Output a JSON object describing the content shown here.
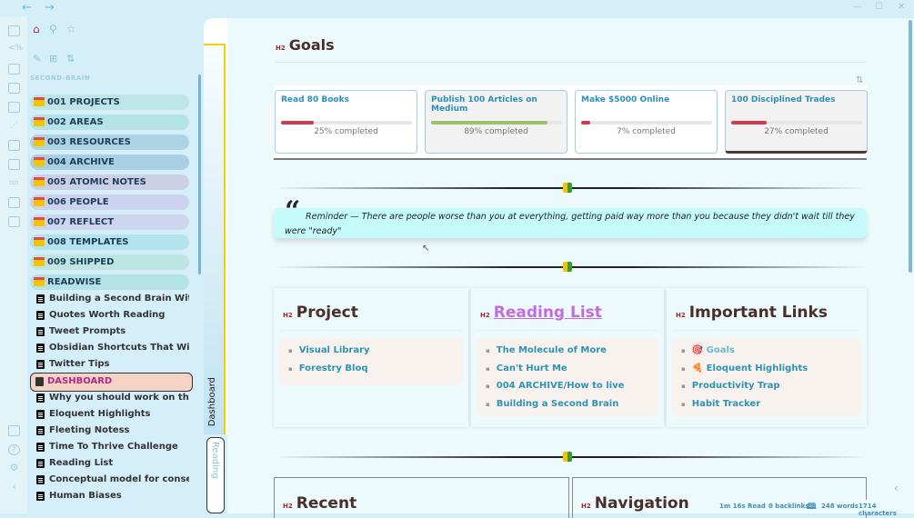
{
  "titlebar": {
    "back_icon": "arrow-left",
    "forward_icon": "arrow-right",
    "window_controls": [
      "minimize",
      "maximize",
      "close"
    ]
  },
  "sidebar": {
    "vault_name": "SECOND-BRAIN",
    "folders": [
      "001 PROJECTS",
      "002 AREAS",
      "003 RESOURCES",
      "004 ARCHIVE",
      "005 ATOMIC NOTES",
      "006 PEOPLE",
      "007 REFLECT",
      "008 TEMPLATES",
      "009 SHIPPED",
      "READWISE"
    ],
    "folder_colors": [
      "#bfe6e6",
      "#b3e3e6",
      "#acd4e3",
      "#a9cfe2",
      "#ccd0e6",
      "#ccd3ef",
      "#ced5ef",
      "#b3e3ec",
      "#bde6e3",
      "#b3e3e6"
    ],
    "files": [
      "Building a Second Brain With O...",
      "Quotes Worth Reading",
      "Tweet Prompts",
      "Obsidian Shortcuts That Will Bl...",
      "Twitter Tips",
      "DASHBOARD",
      "Why you should work on the in...",
      "Eloquent Highlights",
      "Fleeting Notess",
      "Time To Thrive Challenge",
      "Reading List",
      "Conceptual model for conserva...",
      "Human Biases"
    ]
  },
  "tabs": {
    "active": "Dashboard",
    "inactive": "Reading"
  },
  "goals": {
    "heading_tag": "H2",
    "heading": "Goals",
    "cards": [
      {
        "title": "Read 80 Books",
        "progress": 25,
        "label": "25% completed",
        "color": "#d3394a"
      },
      {
        "title": "Publish 100 Articles on Medium",
        "progress": 89,
        "label": "89% completed",
        "color": "#9bc46a"
      },
      {
        "title": "Make $5000 Online",
        "progress": 7,
        "label": "7% completed",
        "color": "#d3394a"
      },
      {
        "title": "100 Disciplined Trades",
        "progress": 27,
        "label": "27% completed",
        "color": "#d3394a"
      }
    ]
  },
  "quote": {
    "text": "Reminder — There are people worse than you at everything, getting paid way more than you because they didn't wait till they were \"ready\""
  },
  "panels": {
    "project": {
      "tag": "H2",
      "title": "Project",
      "items": [
        "Visual Library",
        "Forestry Bloq"
      ]
    },
    "reading": {
      "tag": "H2",
      "title": "Reading List",
      "items": [
        "The Molecule of More",
        "Can't Hurt Me",
        "004 ARCHIVE/How to live",
        "Building a Second Brain"
      ]
    },
    "links": {
      "tag": "H2",
      "title": "Important Links",
      "items": [
        "🎯 Goals",
        "🍕 Eloquent Highlights",
        "Productivity Trap",
        "Habit Tracker"
      ]
    }
  },
  "bottom": {
    "recent_tag": "H2",
    "recent": "Recent",
    "nav_tag": "H2",
    "navigation": "Navigation"
  },
  "status": {
    "read_time": "1m 16s Read",
    "backlinks": "0 backlinks",
    "words": "248 words",
    "characters": "1714 characters"
  }
}
